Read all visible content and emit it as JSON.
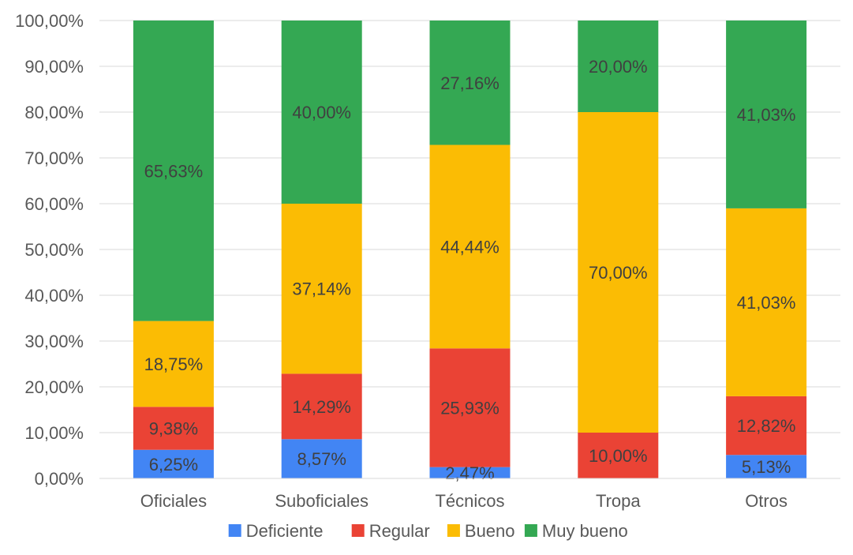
{
  "chart_data": {
    "type": "bar",
    "stacked": true,
    "categories": [
      "Oficiales",
      "Suboficiales",
      "Técnicos",
      "Tropa",
      "Otros"
    ],
    "series": [
      {
        "name": "Deficiente",
        "color": "#4285f4",
        "values": [
          6.25,
          8.57,
          2.47,
          0,
          5.13
        ],
        "labels": [
          "6,25%",
          "8,57%",
          "2,47%",
          "",
          "5,13%"
        ]
      },
      {
        "name": "Regular",
        "color": "#ea4335",
        "values": [
          9.38,
          14.29,
          25.93,
          10.0,
          12.82
        ],
        "labels": [
          "9,38%",
          "14,29%",
          "25,93%",
          "10,00%",
          "12,82%"
        ]
      },
      {
        "name": "Bueno",
        "color": "#fbbc04",
        "values": [
          18.75,
          37.14,
          44.44,
          70.0,
          41.03
        ],
        "labels": [
          "18,75%",
          "37,14%",
          "44,44%",
          "70,00%",
          "41,03%"
        ]
      },
      {
        "name": "Muy bueno",
        "color": "#34a853",
        "values": [
          65.63,
          40.0,
          27.16,
          20.0,
          41.03
        ],
        "labels": [
          "65,63%",
          "40,00%",
          "27,16%",
          "20,00%",
          "41,03%"
        ]
      }
    ],
    "y_ticks": [
      "0,00%",
      "10,00%",
      "20,00%",
      "30,00%",
      "40,00%",
      "50,00%",
      "60,00%",
      "70,00%",
      "80,00%",
      "90,00%",
      "100,00%"
    ],
    "ylim": [
      0,
      100
    ],
    "grid": true,
    "legend_position": "bottom",
    "title": "",
    "xlabel": "",
    "ylabel": ""
  }
}
